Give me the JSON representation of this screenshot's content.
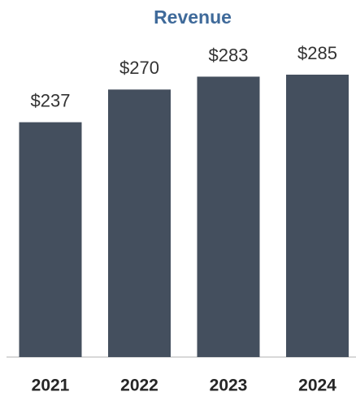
{
  "chart_data": {
    "type": "bar",
    "title": "Revenue",
    "categories": [
      "2021",
      "2022",
      "2023",
      "2024"
    ],
    "values": [
      237,
      270,
      283,
      285
    ],
    "value_labels": [
      "$237",
      "$270",
      "$283",
      "$285"
    ],
    "color": "#444f5e"
  }
}
